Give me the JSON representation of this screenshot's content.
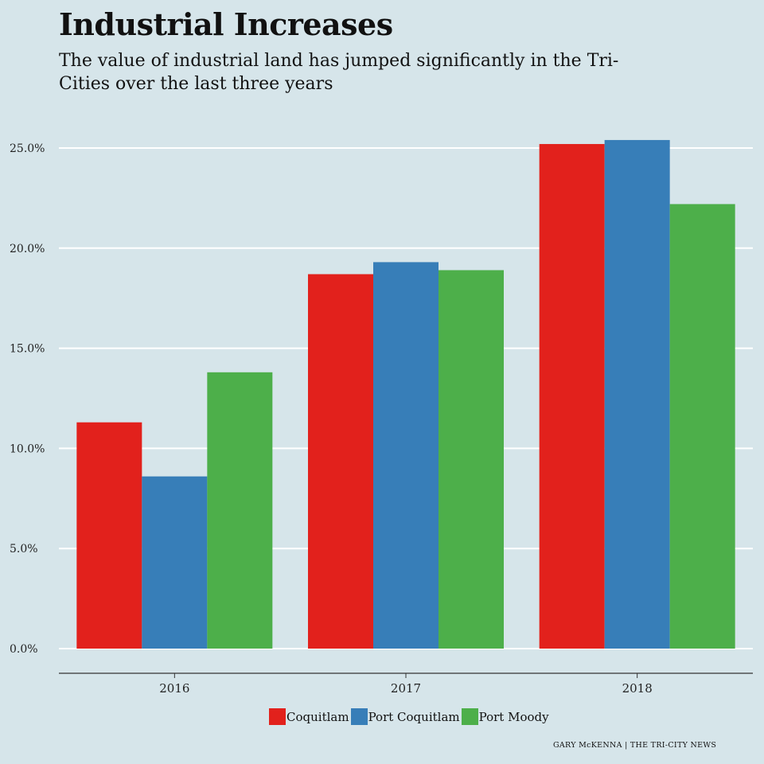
{
  "header": {
    "title": "Industrial Increases",
    "subtitle": "The value of industrial land has jumped significantly in the Tri-Cities over the last three years"
  },
  "credit": "GARY McKENNA | THE TRI-CITY NEWS",
  "chart_data": {
    "type": "bar",
    "title": "Industrial Increases",
    "subtitle": "The value of industrial land has jumped significantly in the Tri-Cities over the last three years",
    "xlabel": "",
    "ylabel": "",
    "categories": [
      "2016",
      "2017",
      "2018"
    ],
    "series": [
      {
        "name": "Coquitlam",
        "color": "#e2211c",
        "values": [
          11.3,
          18.7,
          25.2
        ]
      },
      {
        "name": "Port Coquitlam",
        "color": "#377eb8",
        "values": [
          8.6,
          19.3,
          25.4
        ]
      },
      {
        "name": "Port Moody",
        "color": "#4daf4a",
        "values": [
          13.8,
          18.9,
          22.2
        ]
      }
    ],
    "ylim": [
      0,
      25
    ],
    "yticks": [
      "0.0%",
      "5.0%",
      "10.0%",
      "15.0%",
      "20.0%",
      "25.0%"
    ],
    "ytick_values": [
      0,
      5,
      10,
      15,
      20,
      25
    ],
    "grid": true,
    "legend_position": "bottom"
  }
}
